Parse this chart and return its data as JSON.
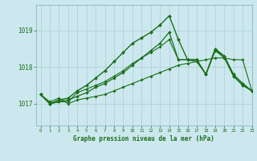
{
  "xlabel": "Graphe pression niveau de la mer (hPa)",
  "bg_color": "#cce8ee",
  "grid_color": "#aaccd4",
  "line_color": "#1a6e1a",
  "ylim": [
    1016.4,
    1019.7
  ],
  "xlim": [
    -0.5,
    23
  ],
  "yticks": [
    1017,
    1018,
    1019
  ],
  "xticks": [
    0,
    1,
    2,
    3,
    4,
    5,
    6,
    7,
    8,
    9,
    10,
    11,
    12,
    13,
    14,
    15,
    16,
    17,
    18,
    19,
    20,
    21,
    22,
    23
  ],
  "series": [
    [
      1017.25,
      1017.05,
      1017.15,
      1017.0,
      1017.1,
      1017.15,
      1017.2,
      1017.25,
      1017.35,
      1017.45,
      1017.55,
      1017.65,
      1017.75,
      1017.85,
      1017.95,
      1018.05,
      1018.1,
      1018.15,
      1018.2,
      1018.25,
      1018.25,
      1018.2,
      1018.2,
      1017.35
    ],
    [
      1017.25,
      1017.0,
      1017.05,
      1017.1,
      1017.2,
      1017.3,
      1017.45,
      1017.55,
      1017.7,
      1017.85,
      1018.05,
      1018.25,
      1018.45,
      1018.65,
      1018.95,
      1018.2,
      1018.2,
      1018.15,
      1017.8,
      1018.45,
      1018.3,
      1017.75,
      1017.5,
      1017.35
    ],
    [
      1017.25,
      1017.0,
      1017.1,
      1017.15,
      1017.35,
      1017.5,
      1017.7,
      1017.9,
      1018.15,
      1018.4,
      1018.65,
      1018.8,
      1018.95,
      1019.15,
      1019.4,
      1018.75,
      1018.2,
      1018.2,
      1017.8,
      1018.5,
      1018.3,
      1017.8,
      1017.55,
      1017.35
    ],
    [
      1017.25,
      1017.0,
      1017.05,
      1017.05,
      1017.3,
      1017.4,
      1017.5,
      1017.6,
      1017.75,
      1017.9,
      1018.1,
      1018.25,
      1018.4,
      1018.55,
      1018.75,
      1018.2,
      1018.2,
      1018.2,
      1017.8,
      1018.45,
      1018.25,
      1017.75,
      1017.5,
      1017.35
    ]
  ]
}
